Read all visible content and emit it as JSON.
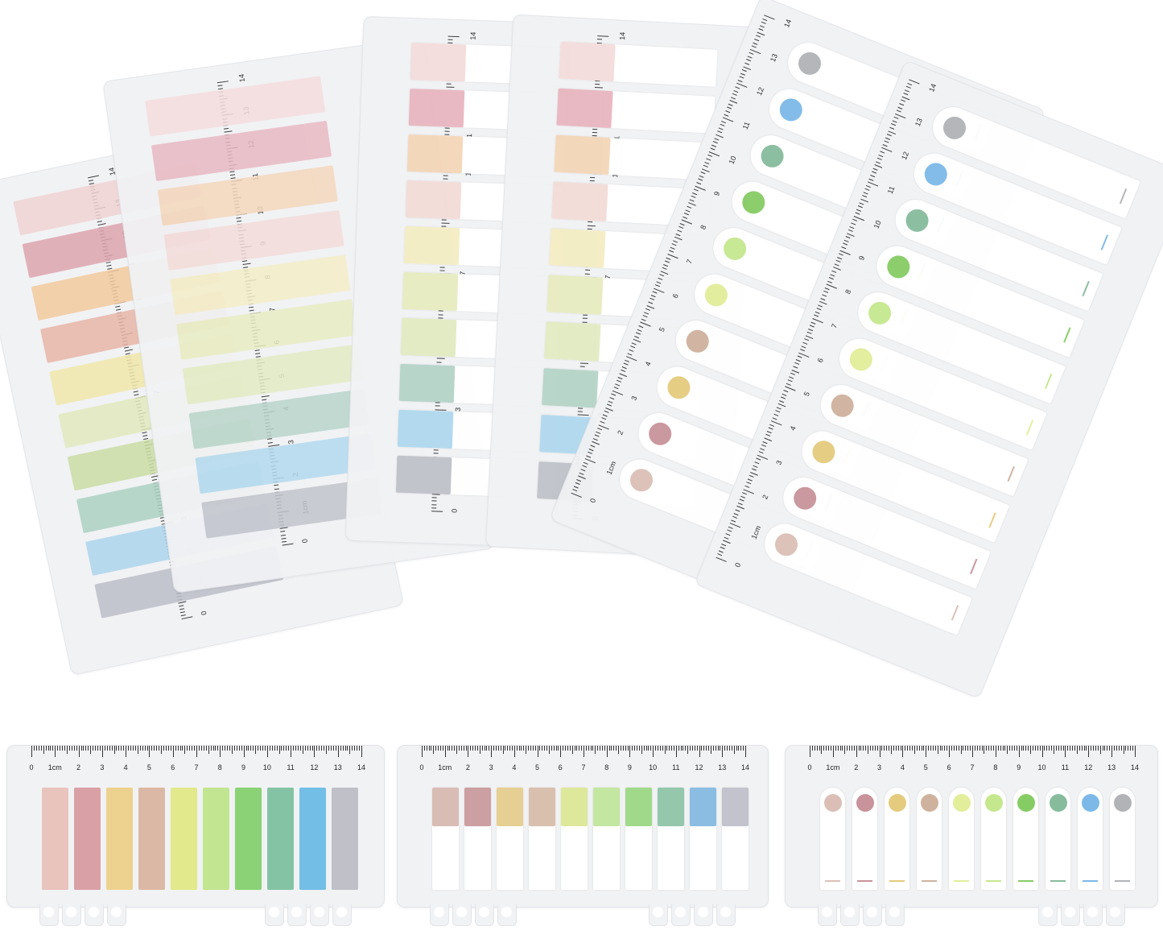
{
  "ruler_labels": [
    "0",
    "1cm",
    "2",
    "3",
    "4",
    "5",
    "6",
    "7",
    "8",
    "9",
    "10",
    "11",
    "12",
    "13",
    "14"
  ],
  "colors": {
    "solid": [
      "#e8c4bd",
      "#d9a0a6",
      "#ecd28e",
      "#dbb8a6",
      "#e1e98c",
      "#c2e591",
      "#8ad275",
      "#85c3a5",
      "#72bee6",
      "#bfc0c8"
    ],
    "half": [
      "#d9bdb5",
      "#cc9fa2",
      "#e6cf93",
      "#d8bfae",
      "#dde89a",
      "#c3e6a0",
      "#a1d98a",
      "#94c7ac",
      "#8bbde3",
      "#c2c3cc"
    ],
    "dot": [
      "#dbbfb6",
      "#c8939a",
      "#e5cb7e",
      "#cfb29e",
      "#e2ee9a",
      "#c5e88f",
      "#86cc64",
      "#86bc9c",
      "#7db9e8",
      "#b2b3b7"
    ],
    "fan_solid": [
      "#b9bbc6",
      "#a9d4ec",
      "#a8cfc0",
      "#c8dca0",
      "#dfe8b8",
      "#f0e6a6",
      "#e6b2a2",
      "#f2c898",
      "#dca0aa",
      "#f0d0d0"
    ],
    "fan_half": [
      "#c0c2ca",
      "#b0d8ee",
      "#b6d4c8",
      "#e2ebc2",
      "#e8ecc0",
      "#f4edc4",
      "#f3dcd8",
      "#f4d6b8",
      "#e8b6c0",
      "#f4dcdc"
    ]
  },
  "products": [
    {
      "type": "solid"
    },
    {
      "type": "half"
    },
    {
      "type": "dot"
    }
  ]
}
